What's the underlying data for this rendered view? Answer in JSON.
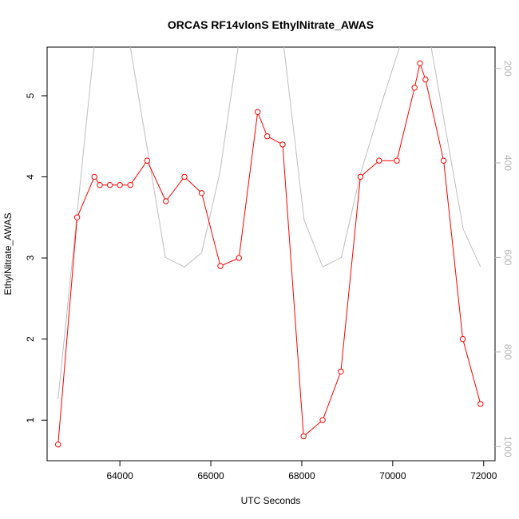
{
  "chart_data": {
    "type": "line",
    "title": "ORCAS RF14vlonS EthylNitrate_AWAS",
    "xlabel": "UTC Seconds",
    "ylabel": "EthylNitrate_AWAS",
    "xlim": [
      62400,
      72250
    ],
    "ylim": [
      0.5,
      5.6
    ],
    "y2lim": [
      1030,
      155
    ],
    "x_ticks": [
      64000,
      66000,
      68000,
      70000,
      72000
    ],
    "y_ticks": [
      1,
      2,
      3,
      4,
      5
    ],
    "y2_ticks": [
      200,
      400,
      600,
      800,
      1000
    ],
    "colors": {
      "primary": "#ff0000",
      "secondary": "#bebebe",
      "axis": "#000000",
      "secondary_tick": "#b3b3b3"
    },
    "series": [
      {
        "axis": "left",
        "style": "line+open-circle",
        "color": "#ff0000",
        "x": [
          62640,
          63060,
          63440,
          63560,
          63780,
          64000,
          64230,
          64600,
          65010,
          65420,
          65800,
          66210,
          66620,
          67030,
          67240,
          67580,
          68040,
          68460,
          68860,
          69290,
          69700,
          70090,
          70480,
          70600,
          70720,
          71120,
          71540,
          71930
        ],
        "values": [
          0.7,
          3.5,
          4.0,
          3.9,
          3.9,
          3.9,
          3.9,
          4.2,
          3.7,
          4.0,
          3.8,
          2.9,
          3.0,
          4.8,
          4.5,
          4.4,
          0.8,
          1.0,
          1.6,
          4.0,
          4.2,
          4.2,
          5.1,
          5.4,
          5.2,
          4.2,
          2.0,
          1.2
        ]
      },
      {
        "axis": "right",
        "style": "line",
        "color": "#bebebe",
        "x": [
          62640,
          63440,
          63800,
          64220,
          65000,
          65420,
          65800,
          66200,
          66650,
          67000,
          67600,
          68050,
          68460,
          68870,
          69300,
          69800,
          70300,
          70600,
          70800,
          71550,
          71930
        ],
        "values": [
          900,
          150,
          50,
          150,
          600,
          620,
          590,
          420,
          120,
          50,
          150,
          520,
          620,
          600,
          420,
          260,
          110,
          50,
          130,
          540,
          620
        ]
      }
    ]
  }
}
